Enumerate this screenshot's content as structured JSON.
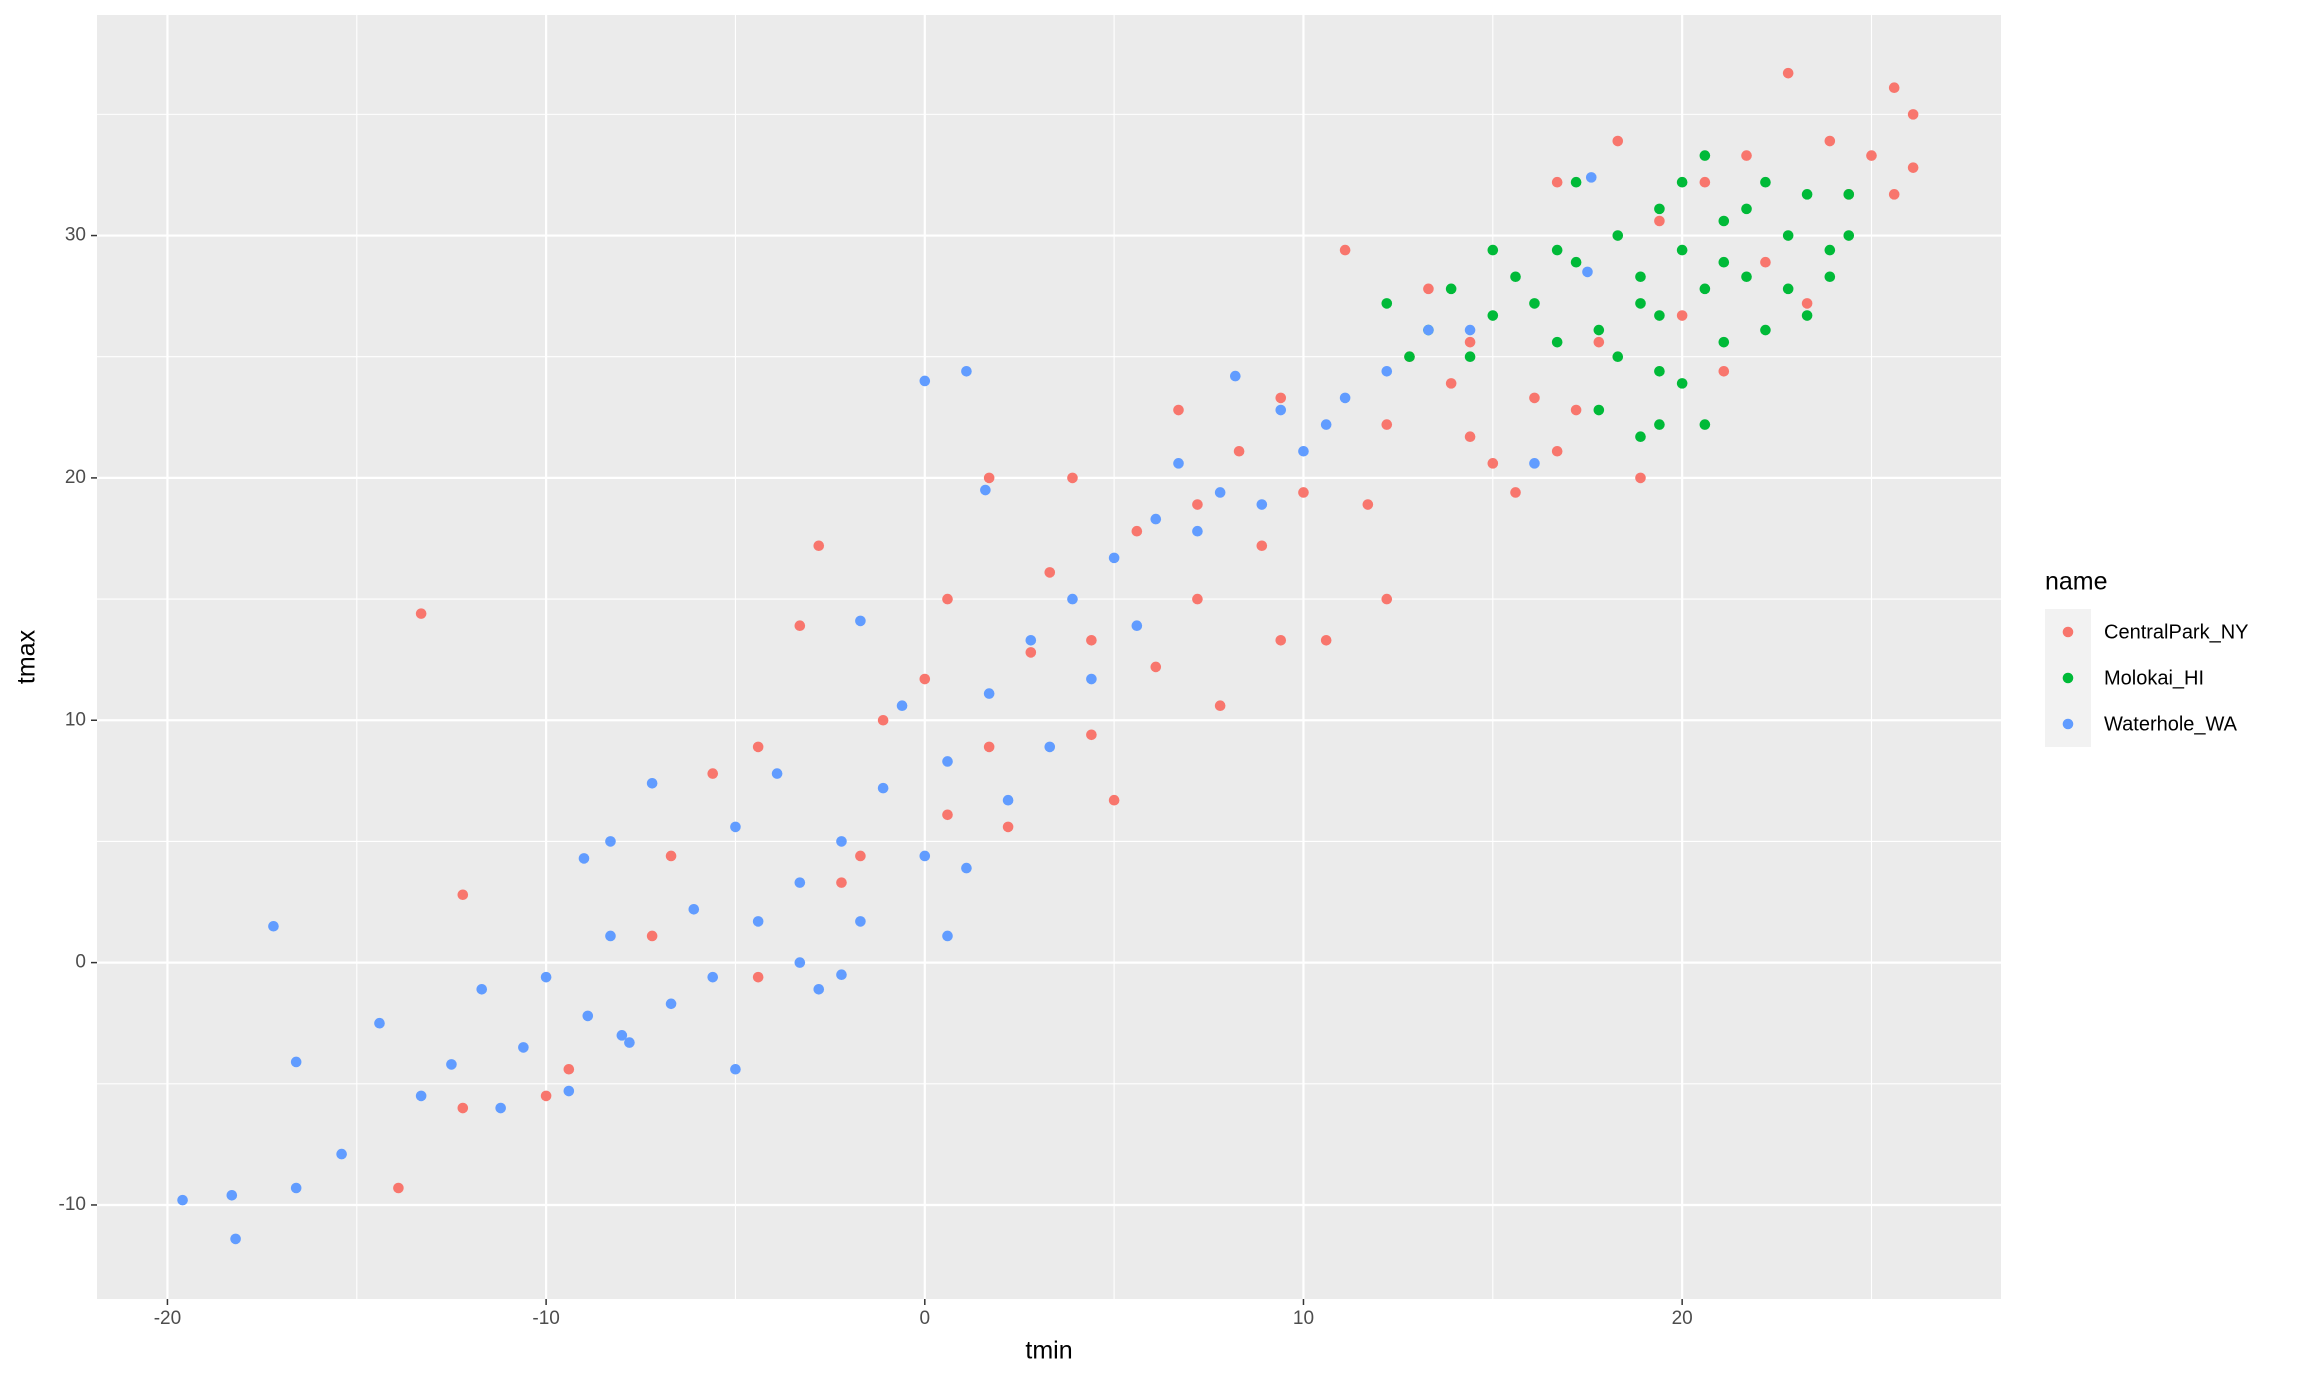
{
  "chart_data": {
    "type": "scatter",
    "x_label": "tmin",
    "y_label": "tmax",
    "legend_title": "name",
    "legend_position": "right",
    "grid": true,
    "xlim": [
      -21.86,
      28.42
    ],
    "ylim": [
      -13.88,
      39.1
    ],
    "xticks": [
      -20,
      -10,
      0,
      10,
      20
    ],
    "yticks": [
      -10,
      0,
      10,
      20,
      30
    ],
    "series": [
      {
        "name": "CentralPark_NY",
        "color": "#F8766D",
        "x": [
          -13.9,
          -13.3,
          -12.2,
          -12.2,
          -10,
          -9.4,
          -6.7,
          -5.6,
          -4.4,
          -3.3,
          -2.8,
          -1.7,
          -1.1,
          0,
          0.6,
          1.7,
          1.7,
          2.8,
          3.3,
          3.9,
          4.4,
          5,
          5.6,
          6.1,
          6.7,
          7.2,
          7.8,
          8.3,
          8.9,
          9.4,
          10,
          10.6,
          11.1,
          11.7,
          12.2,
          12.8,
          13.3,
          13.9,
          14.4,
          15,
          15.6,
          16.1,
          16.7,
          17.2,
          17.8,
          18.3,
          18.9,
          19.4,
          20,
          20.6,
          21.1,
          21.7,
          22.2,
          22.8,
          23.3,
          23.9,
          24.4,
          25,
          25.6,
          25.6,
          26.1,
          26.1,
          -7.2,
          -4.4,
          -2.2,
          0.6,
          2.2,
          4.4,
          7.2,
          9.4,
          12.2,
          14.4,
          16.7
        ],
        "y": [
          -9.3,
          14.4,
          2.8,
          -6,
          -5.5,
          -4.4,
          4.4,
          7.8,
          8.9,
          13.9,
          17.2,
          4.4,
          10,
          11.7,
          15,
          20,
          8.9,
          12.8,
          16.1,
          20,
          13.3,
          6.7,
          17.8,
          12.2,
          22.8,
          15,
          10.6,
          21.1,
          17.2,
          13.3,
          19.4,
          13.3,
          29.4,
          18.9,
          15,
          25,
          27.8,
          23.9,
          21.7,
          20.6,
          19.4,
          23.3,
          32.2,
          22.8,
          25.6,
          33.9,
          20,
          30.6,
          26.7,
          32.2,
          24.4,
          33.3,
          28.9,
          36.7,
          27.2,
          33.9,
          31.7,
          33.3,
          36.1,
          31.7,
          35,
          32.8,
          1.1,
          -0.6,
          3.3,
          6.1,
          5.6,
          9.4,
          18.9,
          23.3,
          22.2,
          25.6,
          21.1
        ]
      },
      {
        "name": "Molokai_HI",
        "color": "#00BA38",
        "x": [
          12.2,
          12.8,
          13.3,
          13.9,
          14.4,
          15,
          15,
          15.6,
          16.1,
          16.7,
          16.7,
          17.2,
          17.2,
          17.8,
          17.8,
          18.3,
          18.3,
          18.9,
          18.9,
          19.4,
          19.4,
          19.4,
          20,
          20,
          20,
          20.6,
          20.6,
          20.6,
          21.1,
          21.1,
          21.7,
          21.7,
          22.2,
          22.2,
          22.8,
          22.8,
          23.3,
          23.3,
          23.9,
          23.9,
          24.4,
          24.4,
          18.9,
          19.4,
          21.1
        ],
        "y": [
          27.2,
          25,
          26.1,
          27.8,
          25,
          29.4,
          26.7,
          28.3,
          27.2,
          29.4,
          25.6,
          28.9,
          32.2,
          26.1,
          22.8,
          30,
          25,
          21.7,
          28.3,
          31.1,
          26.7,
          22.2,
          32.2,
          29.4,
          23.9,
          33.3,
          27.8,
          22.2,
          30.6,
          25.6,
          31.1,
          28.3,
          32.2,
          26.1,
          30,
          27.8,
          31.7,
          26.7,
          29.4,
          28.3,
          31.7,
          30,
          27.2,
          24.4,
          28.9
        ]
      },
      {
        "name": "Waterhole_WA",
        "color": "#619CFF",
        "x": [
          -19.6,
          -18.3,
          -18.2,
          -17.2,
          -16.6,
          -16.6,
          -15.4,
          -14.4,
          -13.3,
          -12.5,
          -11.7,
          -11.2,
          -10.6,
          -10,
          -9.4,
          -9,
          -8.9,
          -8.3,
          -8.3,
          -7.8,
          -7.2,
          -6.7,
          -6.1,
          -5.6,
          -5,
          -4.4,
          -3.9,
          -3.3,
          -2.8,
          -2.2,
          -1.7,
          -1.7,
          -1.1,
          -0.6,
          0,
          0,
          0.6,
          1.1,
          1.1,
          1.6,
          1.7,
          2.2,
          2.8,
          3.3,
          3.9,
          4.4,
          5,
          5.6,
          6.1,
          6.7,
          7.2,
          7.8,
          8.2,
          8.9,
          9.4,
          10,
          10.6,
          11.1,
          12.2,
          13.3,
          14.4,
          16.1,
          17.6,
          17.5,
          -5,
          -3.3,
          0.6,
          -8,
          -2.2
        ],
        "y": [
          -9.8,
          -9.6,
          -11.4,
          1.5,
          -4.1,
          -9.3,
          -7.9,
          -2.5,
          -5.5,
          -4.2,
          -1.1,
          -6,
          -3.5,
          -0.6,
          -5.3,
          4.3,
          -2.2,
          1.1,
          5,
          -3.3,
          7.4,
          -1.7,
          2.2,
          -0.6,
          5.6,
          1.7,
          7.8,
          3.3,
          -1.1,
          5,
          14.1,
          1.7,
          7.2,
          10.6,
          24,
          4.4,
          8.3,
          24.4,
          3.9,
          19.5,
          11.1,
          6.7,
          13.3,
          8.9,
          15,
          11.7,
          16.7,
          13.9,
          18.3,
          20.6,
          17.8,
          19.4,
          24.2,
          18.9,
          22.8,
          21.1,
          22.2,
          23.3,
          24.4,
          26.1,
          26.1,
          20.6,
          32.4,
          28.5,
          -4.4,
          0,
          1.1,
          -3,
          -0.5
        ]
      }
    ]
  }
}
